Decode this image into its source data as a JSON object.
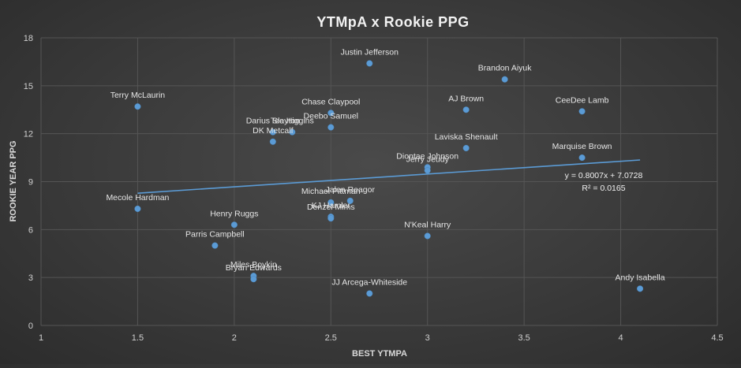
{
  "chart_data": {
    "type": "scatter",
    "title": "YTMpA x Rookie PPG",
    "xlabel": "BEST YTMPA",
    "ylabel": "ROOKIE YEAR PPG",
    "xlim": [
      1,
      4.5
    ],
    "ylim": [
      0,
      18
    ],
    "x_ticks": [
      "1",
      "1.5",
      "2",
      "2.5",
      "3",
      "3.5",
      "4",
      "4.5"
    ],
    "y_ticks": [
      "0",
      "3",
      "6",
      "9",
      "12",
      "15",
      "18"
    ],
    "grid": true,
    "color": "#5b9bd5",
    "points": [
      {
        "label": "Justin Jefferson",
        "x": 2.7,
        "y": 16.4
      },
      {
        "label": "Brandon Aiyuk",
        "x": 3.4,
        "y": 15.4
      },
      {
        "label": "Terry McLaurin",
        "x": 1.5,
        "y": 13.7
      },
      {
        "label": "AJ Brown",
        "x": 3.2,
        "y": 13.5
      },
      {
        "label": "CeeDee Lamb",
        "x": 3.8,
        "y": 13.4
      },
      {
        "label": "Chase Claypool",
        "x": 2.5,
        "y": 13.3
      },
      {
        "label": "Deebo Samuel",
        "x": 2.5,
        "y": 12.4
      },
      {
        "label": "Darius Slayton",
        "x": 2.2,
        "y": 12.1
      },
      {
        "label": "Tee Higgins",
        "x": 2.3,
        "y": 12.1
      },
      {
        "label": "DK Metcalf",
        "x": 2.2,
        "y": 11.5
      },
      {
        "label": "Laviska Shenault",
        "x": 3.2,
        "y": 11.1
      },
      {
        "label": "Marquise Brown",
        "x": 3.8,
        "y": 10.5
      },
      {
        "label": "Diontae Johnson",
        "x": 3.0,
        "y": 9.9
      },
      {
        "label": "Jerry Jeudy",
        "x": 3.0,
        "y": 9.7
      },
      {
        "label": "Jalen Reagor",
        "x": 2.6,
        "y": 7.8
      },
      {
        "label": "Michael Pittman",
        "x": 2.5,
        "y": 7.7
      },
      {
        "label": "KJ Hamler",
        "x": 2.5,
        "y": 6.8
      },
      {
        "label": "Denzel Mims",
        "x": 2.5,
        "y": 6.7
      },
      {
        "label": "Mecole Hardman",
        "x": 1.5,
        "y": 7.3
      },
      {
        "label": "Henry Ruggs",
        "x": 2.0,
        "y": 6.3
      },
      {
        "label": "N'Keal Harry",
        "x": 3.0,
        "y": 5.6
      },
      {
        "label": "Parris Campbell",
        "x": 1.9,
        "y": 5.0
      },
      {
        "label": "Miles Boykin",
        "x": 2.1,
        "y": 3.1
      },
      {
        "label": "Bryan Edwards",
        "x": 2.1,
        "y": 2.9
      },
      {
        "label": "Andy Isabella",
        "x": 4.1,
        "y": 2.3
      },
      {
        "label": "JJ Arcega-Whiteside",
        "x": 2.7,
        "y": 2.0
      }
    ],
    "trendline": {
      "type": "linear",
      "slope": 0.8007,
      "intercept": 7.0728,
      "x_range": [
        1.5,
        4.1
      ],
      "equation": "y = 0.8007x + 7.0728",
      "r_squared": "R² = 0.0165"
    }
  }
}
